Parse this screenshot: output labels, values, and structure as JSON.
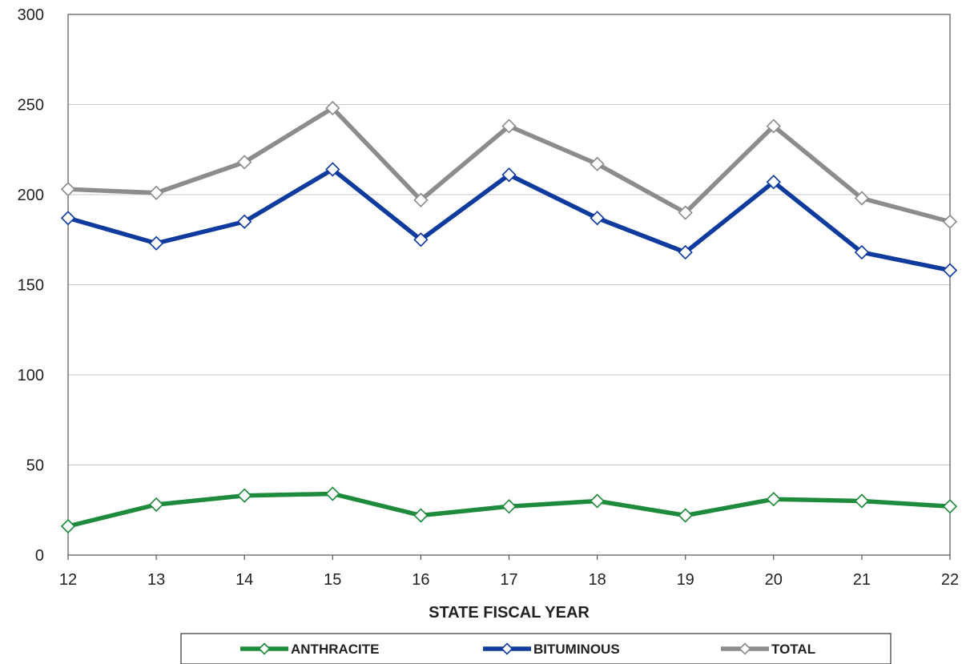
{
  "chart_data": {
    "type": "line",
    "title": "",
    "xlabel": "STATE FISCAL YEAR",
    "ylabel": "",
    "x": [
      "12",
      "13",
      "14",
      "15",
      "16",
      "17",
      "18",
      "19",
      "20",
      "21",
      "22"
    ],
    "ylim": [
      0,
      300
    ],
    "yticks": [
      0,
      50,
      100,
      150,
      200,
      250,
      300
    ],
    "grid": true,
    "legend_position": "bottom",
    "series": [
      {
        "name": "ANTHRACITE",
        "color": "#1e8a3c",
        "values": [
          16,
          28,
          33,
          34,
          22,
          27,
          30,
          22,
          31,
          30,
          27
        ]
      },
      {
        "name": "BITUMINOUS",
        "color": "#0f3a9e",
        "values": [
          187,
          173,
          185,
          214,
          175,
          211,
          187,
          168,
          207,
          168,
          158
        ]
      },
      {
        "name": "TOTAL",
        "color": "#8c8c8c",
        "values": [
          203,
          201,
          218,
          248,
          197,
          238,
          217,
          190,
          238,
          198,
          185
        ]
      }
    ]
  }
}
